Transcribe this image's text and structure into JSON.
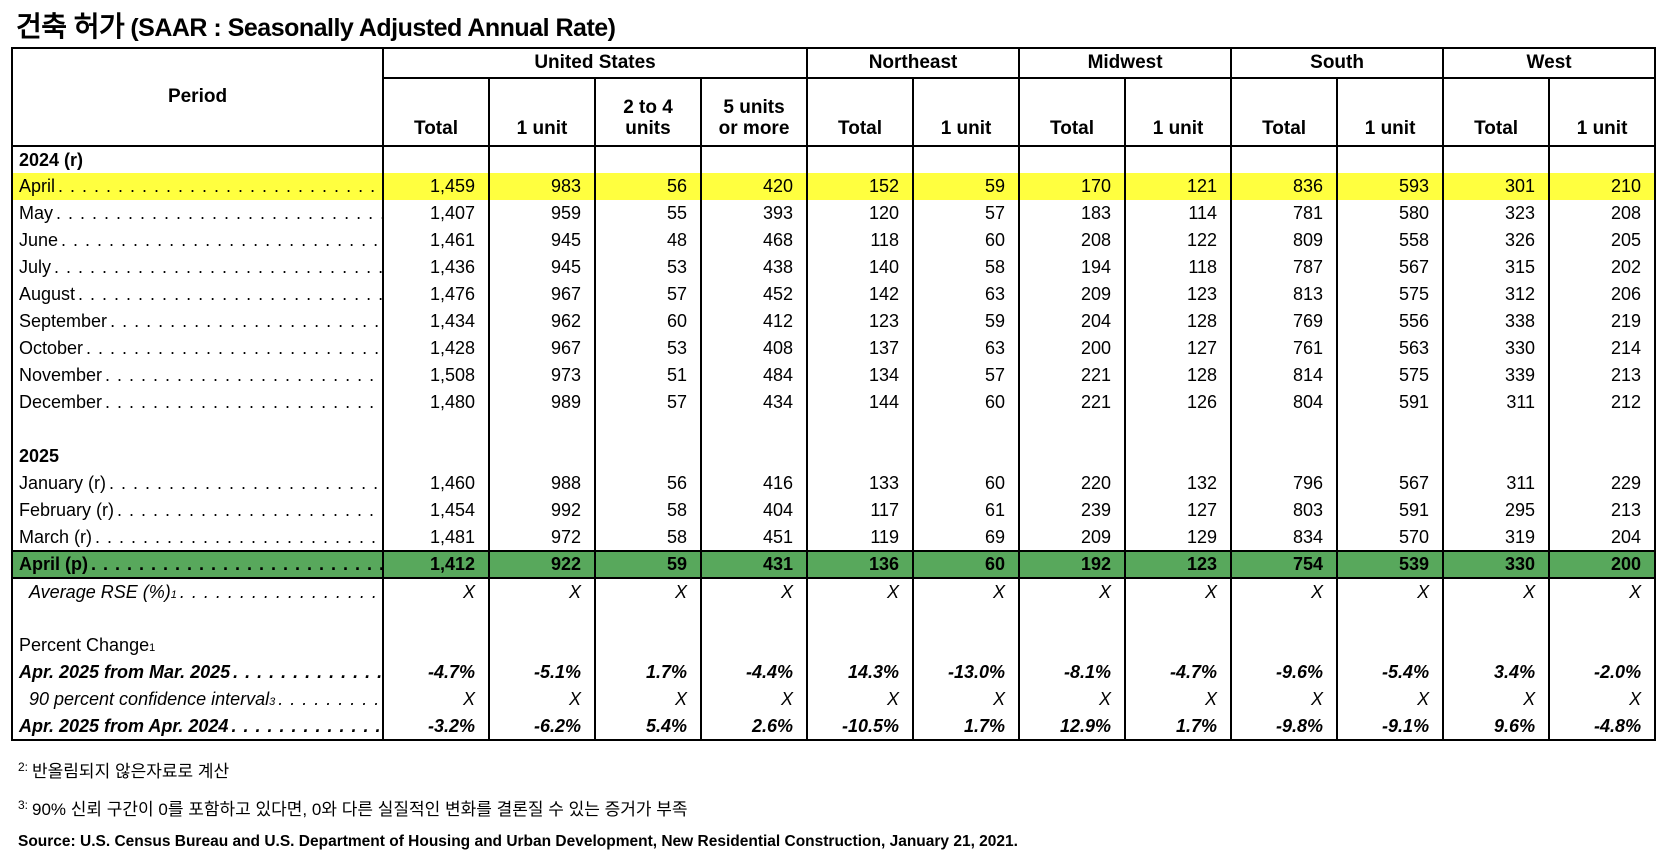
{
  "title": {
    "korean": "건축 허가",
    "english": "(SAAR : Seasonally Adjusted Annual Rate)"
  },
  "table": {
    "period_header": "Period",
    "groups": [
      {
        "label": "United States",
        "cols": [
          "Total",
          "1 unit",
          "2 to 4\nunits",
          "5 units\nor more"
        ]
      },
      {
        "label": "Northeast",
        "cols": [
          "Total",
          "1 unit"
        ]
      },
      {
        "label": "Midwest",
        "cols": [
          "Total",
          "1 unit"
        ]
      },
      {
        "label": "South",
        "cols": [
          "Total",
          "1 unit"
        ]
      },
      {
        "label": "West",
        "cols": [
          "Total",
          "1 unit"
        ]
      }
    ],
    "rows": [
      {
        "type": "section",
        "label": "2024 (r)",
        "bold": true
      },
      {
        "type": "data",
        "label": "April",
        "highlight": "yellow",
        "values": [
          "1,459",
          "983",
          "56",
          "420",
          "152",
          "59",
          "170",
          "121",
          "836",
          "593",
          "301",
          "210"
        ]
      },
      {
        "type": "data",
        "label": "May",
        "values": [
          "1,407",
          "959",
          "55",
          "393",
          "120",
          "57",
          "183",
          "114",
          "781",
          "580",
          "323",
          "208"
        ]
      },
      {
        "type": "data",
        "label": "June",
        "values": [
          "1,461",
          "945",
          "48",
          "468",
          "118",
          "60",
          "208",
          "122",
          "809",
          "558",
          "326",
          "205"
        ]
      },
      {
        "type": "data",
        "label": "July",
        "values": [
          "1,436",
          "945",
          "53",
          "438",
          "140",
          "58",
          "194",
          "118",
          "787",
          "567",
          "315",
          "202"
        ]
      },
      {
        "type": "data",
        "label": "August",
        "values": [
          "1,476",
          "967",
          "57",
          "452",
          "142",
          "63",
          "209",
          "123",
          "813",
          "575",
          "312",
          "206"
        ]
      },
      {
        "type": "data",
        "label": "September",
        "values": [
          "1,434",
          "962",
          "60",
          "412",
          "123",
          "59",
          "204",
          "128",
          "769",
          "556",
          "338",
          "219"
        ]
      },
      {
        "type": "data",
        "label": "October",
        "values": [
          "1,428",
          "967",
          "53",
          "408",
          "137",
          "63",
          "200",
          "127",
          "761",
          "563",
          "330",
          "214"
        ]
      },
      {
        "type": "data",
        "label": "November",
        "values": [
          "1,508",
          "973",
          "51",
          "484",
          "134",
          "57",
          "221",
          "128",
          "814",
          "575",
          "339",
          "213"
        ]
      },
      {
        "type": "data",
        "label": "December",
        "values": [
          "1,480",
          "989",
          "57",
          "434",
          "144",
          "60",
          "221",
          "126",
          "804",
          "591",
          "311",
          "212"
        ]
      },
      {
        "type": "blank"
      },
      {
        "type": "section",
        "label": "2025",
        "bold": true
      },
      {
        "type": "data",
        "label": "January (r)",
        "values": [
          "1,460",
          "988",
          "56",
          "416",
          "133",
          "60",
          "220",
          "132",
          "796",
          "567",
          "311",
          "229"
        ]
      },
      {
        "type": "data",
        "label": "February (r)",
        "values": [
          "1,454",
          "992",
          "58",
          "404",
          "117",
          "61",
          "239",
          "127",
          "803",
          "591",
          "295",
          "213"
        ]
      },
      {
        "type": "data",
        "label": "March (r)",
        "values": [
          "1,481",
          "972",
          "58",
          "451",
          "119",
          "69",
          "209",
          "129",
          "834",
          "570",
          "319",
          "204"
        ]
      },
      {
        "type": "data",
        "label": "April (p)",
        "highlight": "green",
        "style": "bold",
        "values": [
          "1,412",
          "922",
          "59",
          "431",
          "136",
          "60",
          "192",
          "123",
          "754",
          "539",
          "330",
          "200"
        ]
      },
      {
        "type": "data",
        "label": "Average RSE (%)",
        "sup": "1",
        "style": "italic",
        "indent": true,
        "values": [
          "X",
          "X",
          "X",
          "X",
          "X",
          "X",
          "X",
          "X",
          "X",
          "X",
          "X",
          "X"
        ]
      },
      {
        "type": "blank"
      },
      {
        "type": "section",
        "label": "Percent Change",
        "sup": "1",
        "bold": false
      },
      {
        "type": "data",
        "label": "Apr. 2025 from Mar. 2025",
        "style": "bolditalic",
        "values": [
          "-4.7%",
          "-5.1%",
          "1.7%",
          "-4.4%",
          "14.3%",
          "-13.0%",
          "-8.1%",
          "-4.7%",
          "-9.6%",
          "-5.4%",
          "3.4%",
          "-2.0%"
        ]
      },
      {
        "type": "data",
        "label": "90 percent confidence interval",
        "sup": "3",
        "style": "italic",
        "indent": true,
        "values": [
          "X",
          "X",
          "X",
          "X",
          "X",
          "X",
          "X",
          "X",
          "X",
          "X",
          "X",
          "X"
        ]
      },
      {
        "type": "data",
        "label": "Apr. 2025 from Apr. 2024",
        "style": "bolditalic",
        "values": [
          "-3.2%",
          "-6.2%",
          "5.4%",
          "2.6%",
          "-10.5%",
          "1.7%",
          "12.9%",
          "1.7%",
          "-9.8%",
          "-9.1%",
          "9.6%",
          "-4.8%"
        ]
      }
    ]
  },
  "footnotes": [
    {
      "marker": "2:",
      "text": "반올림되지 않은자료로 계산"
    },
    {
      "marker": "3:",
      "text": "90% 신뢰 구간이 0를 포함하고 있다면, 0와 다른 실질적인 변화를 결론질 수 있는 증거가 부족"
    }
  ],
  "source": "Source: U.S. Census Bureau and U.S. Department of Housing and Urban Development, New Residential Construction, January 21, 2021.",
  "colors": {
    "highlight_yellow": "#FFFF3F",
    "highlight_green": "#58A85C",
    "border": "#000000"
  }
}
